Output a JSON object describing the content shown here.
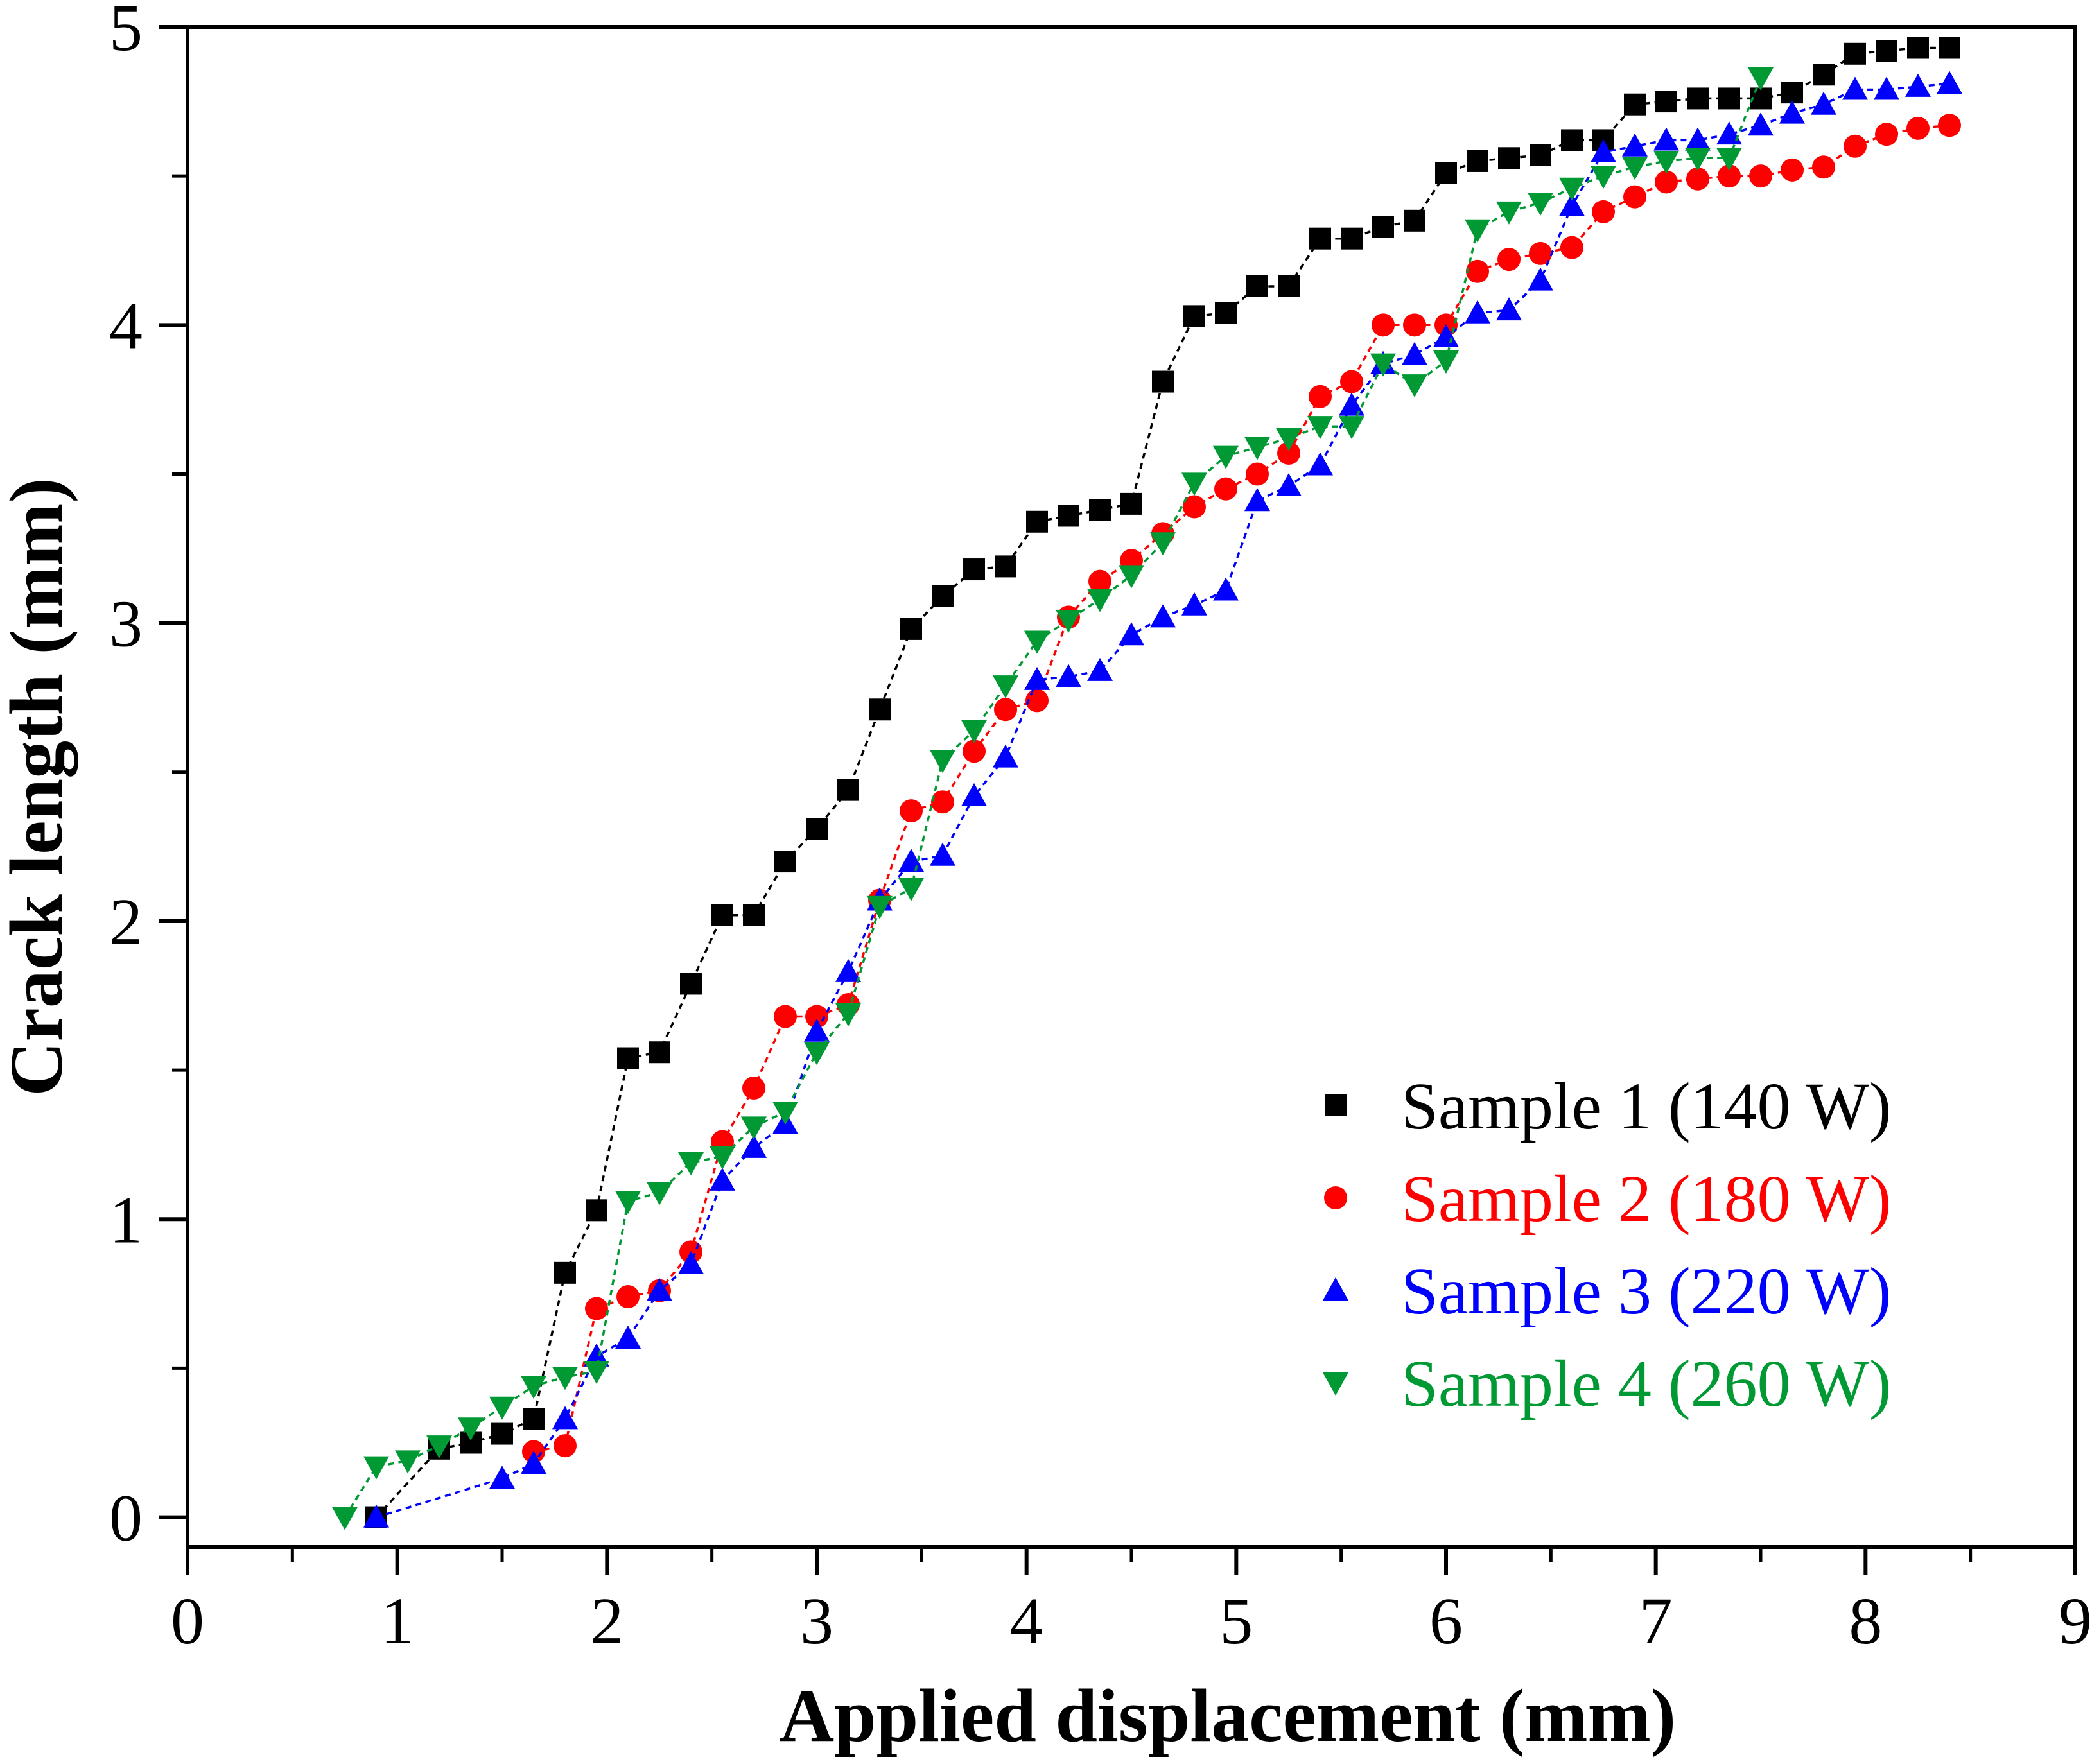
{
  "chart_data": {
    "type": "scatter",
    "xlabel": "Applied displacement (mm)",
    "ylabel": "Crack length (mm)",
    "xlim": [
      0,
      9
    ],
    "ylim": [
      -0.1,
      5
    ],
    "xticks": [
      0,
      1,
      2,
      3,
      4,
      5,
      6,
      7,
      8,
      9
    ],
    "yticks": [
      0,
      1,
      2,
      3,
      4,
      5
    ],
    "legend_position": "bottom-right",
    "series": [
      {
        "name": "Sample 1 (140 W)",
        "color": "#000000",
        "marker": "square",
        "x": [
          0.9,
          1.2,
          1.35,
          1.5,
          1.65,
          1.8,
          1.95,
          2.1,
          2.25,
          2.4,
          2.55,
          2.7,
          2.85,
          3.0,
          3.15,
          3.3,
          3.45,
          3.6,
          3.75,
          3.9,
          4.05,
          4.2,
          4.35,
          4.5,
          4.65,
          4.8,
          4.95,
          5.1,
          5.25,
          5.4,
          5.55,
          5.7,
          5.85,
          6.0,
          6.15,
          6.3,
          6.45,
          6.6,
          6.75,
          6.9,
          7.05,
          7.2,
          7.35,
          7.5,
          7.65,
          7.8,
          7.95,
          8.1,
          8.25,
          8.4
        ],
        "y": [
          0.0,
          0.23,
          0.25,
          0.28,
          0.33,
          0.82,
          1.03,
          1.54,
          1.56,
          1.79,
          2.02,
          2.02,
          2.2,
          2.31,
          2.44,
          2.71,
          2.98,
          3.09,
          3.18,
          3.19,
          3.34,
          3.36,
          3.38,
          3.4,
          3.81,
          4.03,
          4.04,
          4.13,
          4.13,
          4.29,
          4.29,
          4.33,
          4.35,
          4.51,
          4.55,
          4.56,
          4.57,
          4.62,
          4.62,
          4.74,
          4.75,
          4.76,
          4.76,
          4.76,
          4.78,
          4.84,
          4.91,
          4.92,
          4.93,
          4.93
        ]
      },
      {
        "name": "Sample 2 (180 W)",
        "color": "#ff0000",
        "marker": "circle",
        "x": [
          1.65,
          1.8,
          1.95,
          2.1,
          2.25,
          2.4,
          2.55,
          2.7,
          2.85,
          3.0,
          3.15,
          3.3,
          3.45,
          3.6,
          3.75,
          3.9,
          4.05,
          4.2,
          4.35,
          4.5,
          4.65,
          4.8,
          4.95,
          5.1,
          5.25,
          5.4,
          5.55,
          5.7,
          5.85,
          6.0,
          6.15,
          6.3,
          6.45,
          6.6,
          6.75,
          6.9,
          7.05,
          7.2,
          7.35,
          7.5,
          7.65,
          7.8,
          7.95,
          8.1,
          8.25,
          8.4
        ],
        "y": [
          0.22,
          0.24,
          0.7,
          0.74,
          0.76,
          0.89,
          1.26,
          1.44,
          1.68,
          1.68,
          1.72,
          2.07,
          2.37,
          2.4,
          2.57,
          2.71,
          2.74,
          3.02,
          3.14,
          3.21,
          3.3,
          3.39,
          3.45,
          3.5,
          3.57,
          3.76,
          3.81,
          4.0,
          4.0,
          4.0,
          4.18,
          4.22,
          4.24,
          4.26,
          4.38,
          4.43,
          4.48,
          4.49,
          4.5,
          4.5,
          4.52,
          4.53,
          4.6,
          4.64,
          4.66,
          4.67
        ]
      },
      {
        "name": "Sample 3 (220 W)",
        "color": "#0000ff",
        "marker": "triangle-up",
        "x": [
          0.9,
          1.5,
          1.65,
          1.8,
          1.95,
          2.1,
          2.25,
          2.4,
          2.55,
          2.7,
          2.85,
          3.0,
          3.15,
          3.3,
          3.45,
          3.6,
          3.75,
          3.9,
          4.05,
          4.2,
          4.35,
          4.5,
          4.65,
          4.8,
          4.95,
          5.1,
          5.25,
          5.4,
          5.55,
          5.7,
          5.85,
          6.0,
          6.15,
          6.3,
          6.45,
          6.6,
          6.75,
          6.9,
          7.05,
          7.2,
          7.35,
          7.5,
          7.65,
          7.8,
          7.95,
          8.1,
          8.25,
          8.4
        ],
        "y": [
          0.0,
          0.13,
          0.18,
          0.33,
          0.54,
          0.6,
          0.76,
          0.85,
          1.13,
          1.24,
          1.32,
          1.63,
          1.83,
          2.07,
          2.2,
          2.22,
          2.42,
          2.55,
          2.81,
          2.82,
          2.84,
          2.96,
          3.02,
          3.06,
          3.11,
          3.41,
          3.46,
          3.53,
          3.73,
          3.87,
          3.9,
          3.96,
          4.04,
          4.05,
          4.15,
          4.4,
          4.58,
          4.6,
          4.62,
          4.62,
          4.64,
          4.67,
          4.71,
          4.74,
          4.79,
          4.79,
          4.8,
          4.81
        ]
      },
      {
        "name": "Sample 4 (260 W)",
        "color": "#009933",
        "marker": "triangle-down",
        "x": [
          0.75,
          0.9,
          1.05,
          1.2,
          1.35,
          1.5,
          1.65,
          1.8,
          1.95,
          2.1,
          2.25,
          2.4,
          2.55,
          2.7,
          2.85,
          3.0,
          3.15,
          3.3,
          3.45,
          3.6,
          3.75,
          3.9,
          4.05,
          4.2,
          4.35,
          4.5,
          4.65,
          4.8,
          4.95,
          5.1,
          5.25,
          5.4,
          5.55,
          5.7,
          5.85,
          6.0,
          6.15,
          6.3,
          6.45,
          6.6,
          6.75,
          6.9,
          7.05,
          7.2,
          7.35,
          7.5
        ],
        "y": [
          0.0,
          0.17,
          0.19,
          0.24,
          0.3,
          0.37,
          0.44,
          0.47,
          0.49,
          1.06,
          1.09,
          1.19,
          1.21,
          1.31,
          1.36,
          1.56,
          1.69,
          2.05,
          2.11,
          2.54,
          2.64,
          2.79,
          2.94,
          3.01,
          3.08,
          3.16,
          3.27,
          3.47,
          3.56,
          3.59,
          3.62,
          3.66,
          3.66,
          3.87,
          3.8,
          3.88,
          4.32,
          4.38,
          4.41,
          4.46,
          4.5,
          4.53,
          4.55,
          4.56,
          4.56,
          4.83
        ]
      }
    ]
  }
}
